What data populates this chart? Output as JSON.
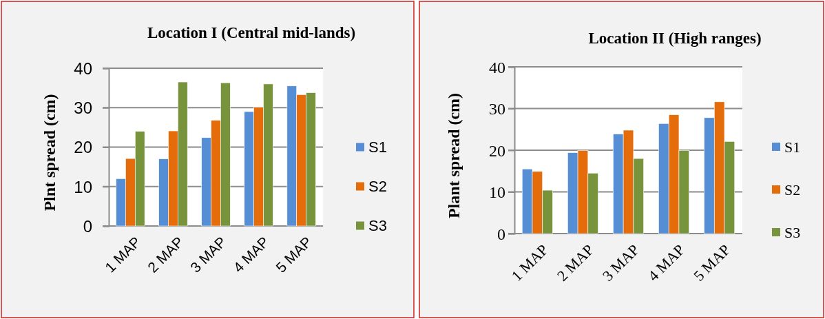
{
  "chart_data": [
    {
      "type": "bar",
      "title": "Location I (Central mid-lands)",
      "ylabel": "Plnt spread (cm)",
      "categories": [
        "1 MAP",
        "2 MAP",
        "3 MAP",
        "4 MAP",
        "5 MAP"
      ],
      "series": [
        {
          "name": "S1",
          "color": "#558ed5",
          "values": [
            12,
            17,
            22.4,
            29,
            35.5
          ]
        },
        {
          "name": "S2",
          "color": "#e46c0a",
          "values": [
            17.1,
            24.1,
            26.8,
            30.1,
            33.3
          ]
        },
        {
          "name": "S3",
          "color": "#77933c",
          "values": [
            24,
            36.5,
            36.3,
            36,
            33.8
          ]
        }
      ],
      "ylim": [
        0,
        40
      ],
      "yticks": [
        0,
        10,
        20,
        30,
        40
      ],
      "grid": "y",
      "legend": "right"
    },
    {
      "type": "bar",
      "title": "Location II (High ranges)",
      "ylabel": "Plant spread (cm)",
      "categories": [
        "1 MAP",
        "2 MAP",
        "3 MAP",
        "4 MAP",
        "5 MAP"
      ],
      "series": [
        {
          "name": "S1",
          "color": "#558ed5",
          "values": [
            15.5,
            19.4,
            23.9,
            26.4,
            27.8
          ]
        },
        {
          "name": "S2",
          "color": "#e46c0a",
          "values": [
            14.9,
            19.9,
            24.8,
            28.5,
            31.6
          ]
        },
        {
          "name": "S3",
          "color": "#77933c",
          "values": [
            10.4,
            14.5,
            18,
            19.9,
            22.1
          ]
        }
      ],
      "ylim": [
        0,
        40
      ],
      "yticks": [
        0,
        10,
        20,
        30,
        40
      ],
      "grid": "y",
      "legend": "right"
    }
  ]
}
